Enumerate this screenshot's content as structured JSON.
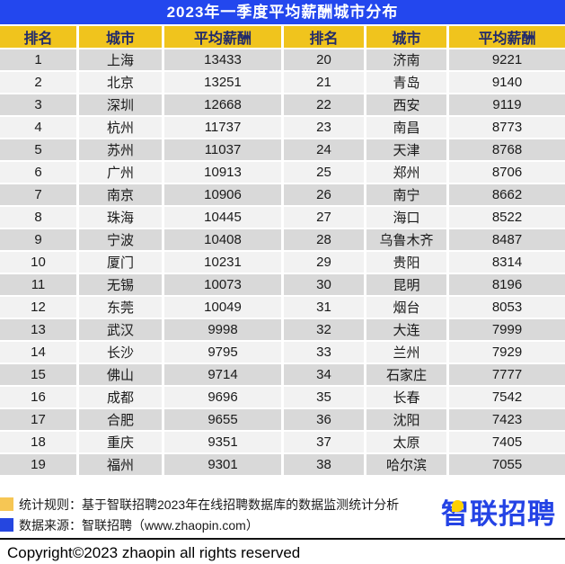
{
  "title": "2023年一季度平均薪酬城市分布",
  "colors": {
    "title_bar_blue": "#2347EE",
    "header_yellow": "#F0C41D",
    "header_text_navy": "#212a6b",
    "row_gray": "#D9D9D9",
    "row_light": "#F2F2F2",
    "legend_yellow": "#F6C654",
    "legend_blue": "#2546E0",
    "logo_blue": "#2443E5",
    "logo_yellow": "#FFD100"
  },
  "table": {
    "headers": [
      "排名",
      "城市",
      "平均薪酬",
      "排名",
      "城市",
      "平均薪酬"
    ],
    "rows": [
      [
        "1",
        "上海",
        "13433",
        "20",
        "济南",
        "9221"
      ],
      [
        "2",
        "北京",
        "13251",
        "21",
        "青岛",
        "9140"
      ],
      [
        "3",
        "深圳",
        "12668",
        "22",
        "西安",
        "9119"
      ],
      [
        "4",
        "杭州",
        "11737",
        "23",
        "南昌",
        "8773"
      ],
      [
        "5",
        "苏州",
        "11037",
        "24",
        "天津",
        "8768"
      ],
      [
        "6",
        "广州",
        "10913",
        "25",
        "郑州",
        "8706"
      ],
      [
        "7",
        "南京",
        "10906",
        "26",
        "南宁",
        "8662"
      ],
      [
        "8",
        "珠海",
        "10445",
        "27",
        "海口",
        "8522"
      ],
      [
        "9",
        "宁波",
        "10408",
        "28",
        "乌鲁木齐",
        "8487"
      ],
      [
        "10",
        "厦门",
        "10231",
        "29",
        "贵阳",
        "8314"
      ],
      [
        "11",
        "无锡",
        "10073",
        "30",
        "昆明",
        "8196"
      ],
      [
        "12",
        "东莞",
        "10049",
        "31",
        "烟台",
        "8053"
      ],
      [
        "13",
        "武汉",
        "9998",
        "32",
        "大连",
        "7999"
      ],
      [
        "14",
        "长沙",
        "9795",
        "33",
        "兰州",
        "7929"
      ],
      [
        "15",
        "佛山",
        "9714",
        "34",
        "石家庄",
        "7777"
      ],
      [
        "16",
        "成都",
        "9696",
        "35",
        "长春",
        "7542"
      ],
      [
        "17",
        "合肥",
        "9655",
        "36",
        "沈阳",
        "7423"
      ],
      [
        "18",
        "重庆",
        "9351",
        "37",
        "太原",
        "7405"
      ],
      [
        "19",
        "福州",
        "9301",
        "38",
        "哈尔滨",
        "7055"
      ]
    ]
  },
  "footer": {
    "legend": [
      {
        "label": "统计规则：基于智联招聘2023年在线招聘数据库的数据监测统计分析"
      },
      {
        "label": "数据来源：智联招聘（www.zhaopin.com）"
      }
    ],
    "copyright": "Copyright©2023 zhaopin all rights reserved",
    "logo_text": "智联招聘"
  },
  "chart_data": {
    "type": "table",
    "title": "2023年一季度平均薪酬城市分布",
    "columns": [
      "排名",
      "城市",
      "平均薪酬"
    ],
    "rows": [
      [
        1,
        "上海",
        13433
      ],
      [
        2,
        "北京",
        13251
      ],
      [
        3,
        "深圳",
        12668
      ],
      [
        4,
        "杭州",
        11737
      ],
      [
        5,
        "苏州",
        11037
      ],
      [
        6,
        "广州",
        10913
      ],
      [
        7,
        "南京",
        10906
      ],
      [
        8,
        "珠海",
        10445
      ],
      [
        9,
        "宁波",
        10408
      ],
      [
        10,
        "厦门",
        10231
      ],
      [
        11,
        "无锡",
        10073
      ],
      [
        12,
        "东莞",
        10049
      ],
      [
        13,
        "武汉",
        9998
      ],
      [
        14,
        "长沙",
        9795
      ],
      [
        15,
        "佛山",
        9714
      ],
      [
        16,
        "成都",
        9696
      ],
      [
        17,
        "合肥",
        9655
      ],
      [
        18,
        "重庆",
        9351
      ],
      [
        19,
        "福州",
        9301
      ],
      [
        20,
        "济南",
        9221
      ],
      [
        21,
        "青岛",
        9140
      ],
      [
        22,
        "西安",
        9119
      ],
      [
        23,
        "南昌",
        8773
      ],
      [
        24,
        "天津",
        8768
      ],
      [
        25,
        "郑州",
        8706
      ],
      [
        26,
        "南宁",
        8662
      ],
      [
        27,
        "海口",
        8522
      ],
      [
        28,
        "乌鲁木齐",
        8487
      ],
      [
        29,
        "贵阳",
        8314
      ],
      [
        30,
        "昆明",
        8196
      ],
      [
        31,
        "烟台",
        8053
      ],
      [
        32,
        "大连",
        7999
      ],
      [
        33,
        "兰州",
        7929
      ],
      [
        34,
        "石家庄",
        7777
      ],
      [
        35,
        "长春",
        7542
      ],
      [
        36,
        "沈阳",
        7423
      ],
      [
        37,
        "太原",
        7405
      ],
      [
        38,
        "哈尔滨",
        7055
      ]
    ],
    "notes": [
      "统计规则：基于智联招聘2023年在线招聘数据库的数据监测统计分析",
      "数据来源：智联招聘（www.zhaopin.com）"
    ]
  }
}
